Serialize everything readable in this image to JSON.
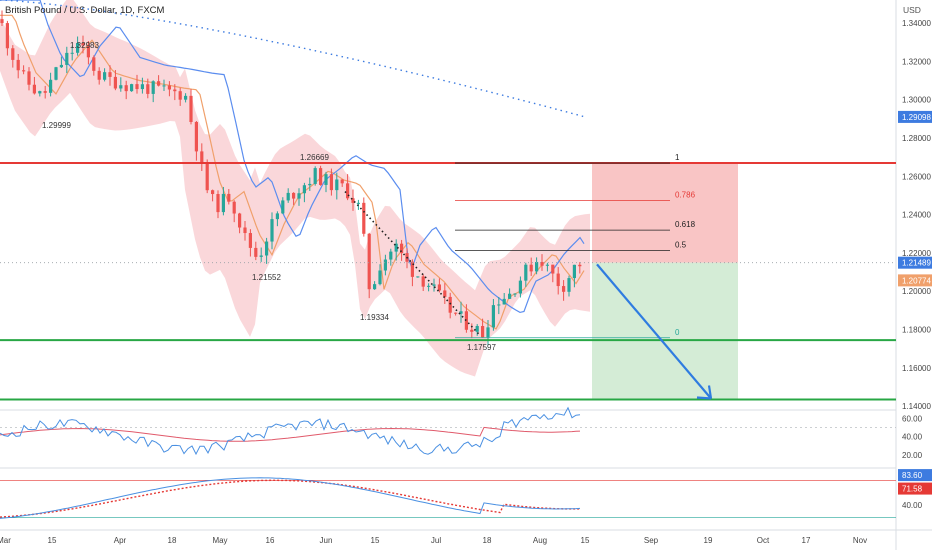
{
  "header": {
    "symbol_title": "British Pound / U.S. Dollar, 1D, FXCM",
    "currency": "USD"
  },
  "colors": {
    "bull": "#26a69a",
    "bear": "#ef5350",
    "resistance_line": "#e53935",
    "support_line": "#28a745",
    "ma_fast": "#f0a06b",
    "ma_slow": "#5b8def",
    "dotted_ma": "#3d7be0",
    "band_fill": "#f8c9cd",
    "stop_zone": "#f9c5c5",
    "target_zone": "#d4ecd6",
    "arrow": "#2f7ce0",
    "rsi": "#4a90e2",
    "rsi_ma": "#e05a6b",
    "stoch_k": "#4a90e2",
    "stoch_d": "#e53935"
  },
  "chart_data": {
    "type": "candlestick",
    "y_axis_ticks": [
      "1.34000",
      "1.32000",
      "1.30000",
      "1.28000",
      "1.26000",
      "1.24000",
      "1.22000",
      "1.20000",
      "1.18000",
      "1.16000",
      "1.14000"
    ],
    "x_axis_labels": [
      "Mar",
      "15",
      "Apr",
      "18",
      "May",
      "16",
      "Jun",
      "15",
      "Jul",
      "18",
      "Aug",
      "15",
      "Sep",
      "19",
      "Oct",
      "17",
      "Nov"
    ],
    "ylim": [
      1.138,
      1.352
    ],
    "price_badges": [
      {
        "label": "1.29098",
        "color": "#3d7be0"
      },
      {
        "label": "1.21489",
        "color": "#3d7be0"
      },
      {
        "label": "1.20774",
        "color": "#f0a06b"
      }
    ],
    "horizontal_levels": [
      {
        "name": "resistance",
        "value": 1.2669
      },
      {
        "name": "support-1",
        "value": 1.1745
      },
      {
        "name": "support-2",
        "value": 1.1435
      }
    ],
    "swing_labels": [
      "1.32983",
      "1.29999",
      "1.26669",
      "1.21552",
      "1.19334",
      "1.17597"
    ],
    "fibonacci": [
      {
        "label": "1",
        "value": 1.2669
      },
      {
        "label": "0.786",
        "value": 1.2473
      },
      {
        "label": "0.618",
        "value": 1.2319
      },
      {
        "label": "0.5",
        "value": 1.2212
      },
      {
        "label": "0",
        "value": 1.1757
      }
    ],
    "rsi_panel": {
      "ticks": [
        "60.00",
        "40.00",
        "20.00"
      ]
    },
    "stoch_panel": {
      "ticks": [
        "40.00"
      ],
      "badges": [
        {
          "label": "83.60",
          "color": "#3d7be0"
        },
        {
          "label": "71.58",
          "color": "#e53935"
        }
      ]
    }
  }
}
